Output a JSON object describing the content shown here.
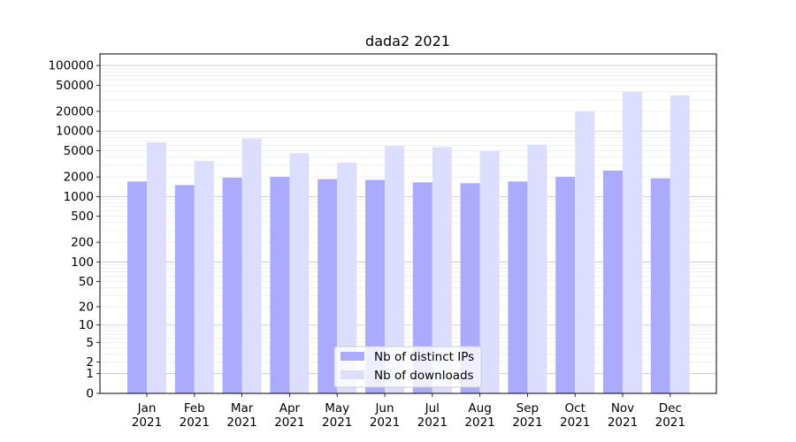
{
  "chart_data": {
    "type": "bar",
    "title": "dada2 2021",
    "xlabel": "",
    "ylabel": "",
    "y_scale": "symlog",
    "ylim": [
      0,
      150000
    ],
    "yticks": [
      0,
      1,
      2,
      5,
      10,
      20,
      50,
      100,
      200,
      500,
      1000,
      2000,
      5000,
      10000,
      20000,
      50000,
      100000
    ],
    "ytick_labels": [
      "0",
      "1",
      "2",
      "5",
      "10",
      "20",
      "50",
      "100",
      "200",
      "500",
      "1000",
      "2000",
      "5000",
      "10000",
      "20000",
      "50000",
      "100000"
    ],
    "categories": [
      "Jan\n2021",
      "Feb\n2021",
      "Mar\n2021",
      "Apr\n2021",
      "May\n2021",
      "Jun\n2021",
      "Jul\n2021",
      "Aug\n2021",
      "Sep\n2021",
      "Oct\n2021",
      "Nov\n2021",
      "Dec\n2021"
    ],
    "grid": true,
    "legend_position": "bottom-center",
    "series": [
      {
        "name": "Nb of distinct IPs",
        "color": "#aaaaff",
        "values": [
          1700,
          1500,
          1950,
          2000,
          1850,
          1800,
          1650,
          1600,
          1700,
          2000,
          2500,
          1900
        ]
      },
      {
        "name": "Nb of downloads",
        "color": "#ddddff",
        "values": [
          6700,
          3500,
          7700,
          4600,
          3300,
          5900,
          5700,
          5000,
          6200,
          20000,
          40000,
          35000
        ]
      }
    ]
  }
}
